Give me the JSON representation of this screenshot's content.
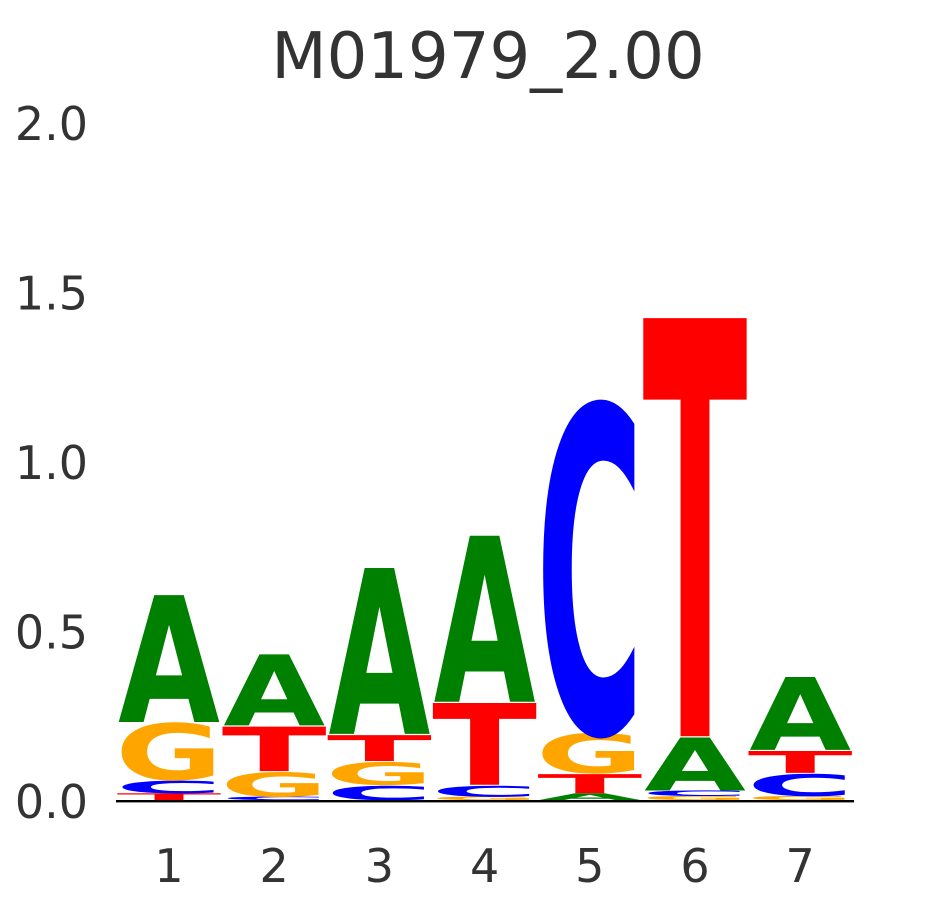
{
  "title": "M01979_2.00",
  "colors": {
    "A": "#008000",
    "C": "#0000ff",
    "G": "#ffa500",
    "T": "#ff0000",
    "axis_text": "#333333",
    "axis_line": "#000000",
    "background": "#ffffff"
  },
  "chart_data": {
    "type": "sequence-logo",
    "title": "M01979_2.00",
    "xlabel": "",
    "ylabel": "",
    "ylim": [
      0,
      2.0
    ],
    "grid": false,
    "legend": false,
    "x_ticks": [
      "1",
      "2",
      "3",
      "4",
      "5",
      "6",
      "7"
    ],
    "y_ticks": [
      {
        "label": "2.0",
        "value": 2.0
      },
      {
        "label": "1.5",
        "value": 1.5
      },
      {
        "label": "1.0",
        "value": 1.0
      },
      {
        "label": "0.5",
        "value": 0.5
      },
      {
        "label": "0.0",
        "value": 0.0
      }
    ],
    "stack_order": "bottom-to-top",
    "positions": [
      {
        "position": 1,
        "total": 0.605,
        "stack": [
          {
            "base": "T",
            "value": 0.02
          },
          {
            "base": "C",
            "value": 0.04
          },
          {
            "base": "G",
            "value": 0.17
          },
          {
            "base": "A",
            "value": 0.375
          }
        ]
      },
      {
        "position": 2,
        "total": 0.43,
        "stack": [
          {
            "base": "C",
            "value": 0.01
          },
          {
            "base": "G",
            "value": 0.075
          },
          {
            "base": "T",
            "value": 0.135
          },
          {
            "base": "A",
            "value": 0.21
          }
        ]
      },
      {
        "position": 3,
        "total": 0.685,
        "stack": [
          {
            "base": "C",
            "value": 0.045
          },
          {
            "base": "G",
            "value": 0.07
          },
          {
            "base": "T",
            "value": 0.08
          },
          {
            "base": "A",
            "value": 0.49
          }
        ]
      },
      {
        "position": 4,
        "total": 0.78,
        "stack": [
          {
            "base": "G",
            "value": 0.01
          },
          {
            "base": "C",
            "value": 0.035
          },
          {
            "base": "T",
            "value": 0.245
          },
          {
            "base": "A",
            "value": 0.49
          }
        ]
      },
      {
        "position": 5,
        "total": 1.165,
        "stack": [
          {
            "base": "A",
            "value": 0.02
          },
          {
            "base": "T",
            "value": 0.06
          },
          {
            "base": "G",
            "value": 0.12
          },
          {
            "base": "C",
            "value": 0.965
          }
        ]
      },
      {
        "position": 6,
        "total": 1.423,
        "stack": [
          {
            "base": "G",
            "value": 0.012
          },
          {
            "base": "C",
            "value": 0.016
          },
          {
            "base": "A",
            "value": 0.16
          },
          {
            "base": "T",
            "value": 1.235
          }
        ]
      },
      {
        "position": 7,
        "total": 0.363,
        "stack": [
          {
            "base": "G",
            "value": 0.012
          },
          {
            "base": "C",
            "value": 0.068
          },
          {
            "base": "T",
            "value": 0.068
          },
          {
            "base": "A",
            "value": 0.215
          }
        ]
      }
    ]
  }
}
